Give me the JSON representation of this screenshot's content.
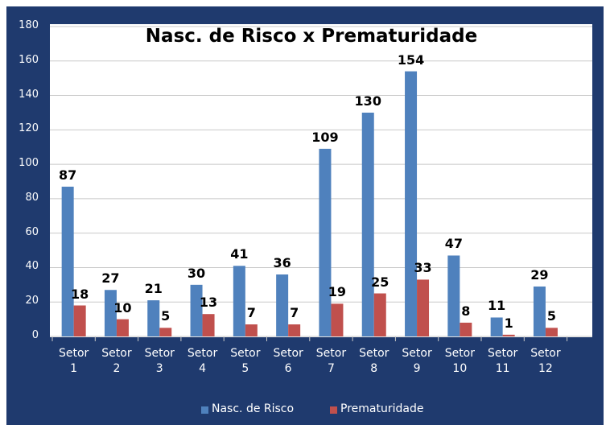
{
  "chart_data": {
    "type": "bar",
    "title": "Nasc. de Risco x Prematuridade",
    "categories": [
      "Setor 1",
      "Setor 2",
      "Setor 3",
      "Setor 4",
      "Setor 5",
      "Setor 6",
      "Setor 7",
      "Setor 8",
      "Setor 9",
      "Setor 10",
      "Setor 11",
      "Setor 12"
    ],
    "series": [
      {
        "name": "Nasc. de Risco",
        "color": "#4f81bd",
        "values": [
          87,
          27,
          21,
          30,
          41,
          36,
          109,
          130,
          154,
          47,
          11,
          29
        ]
      },
      {
        "name": "Prematuridade",
        "color": "#c0504d",
        "values": [
          18,
          10,
          5,
          13,
          7,
          7,
          19,
          25,
          33,
          8,
          1,
          5
        ]
      }
    ],
    "ylim": [
      0,
      180
    ],
    "yticks": [
      0,
      20,
      40,
      60,
      80,
      100,
      120,
      140,
      160,
      180
    ],
    "grid": true,
    "legend": "bottom"
  }
}
